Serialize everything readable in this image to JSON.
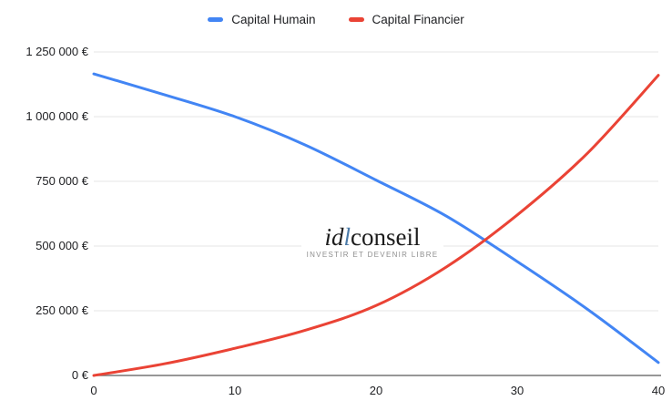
{
  "colors": {
    "background": "#ffffff",
    "gridline": "#e6e6e6",
    "axis_line": "#757575",
    "tick_label": "#202124",
    "legend_text": "#202124"
  },
  "watermark": {
    "brand_prefix": "id",
    "brand_accent": "l",
    "brand_rest": "conseil",
    "tagline": "INVESTIR ET DEVENIR LIBRE",
    "accent_color": "#4a7aa8",
    "brand_color": "#1c1c1c",
    "tagline_color": "#8f8f8f"
  },
  "chart_data": {
    "type": "line",
    "title": "",
    "xlabel": "",
    "ylabel": "",
    "x": [
      0,
      5,
      10,
      15,
      20,
      25,
      30,
      35,
      40
    ],
    "series": [
      {
        "name": "Capital Humain",
        "color": "#4285f4",
        "values": [
          1165000,
          1085000,
          1000000,
          890000,
          755000,
          615000,
          440000,
          255000,
          50000
        ]
      },
      {
        "name": "Capital Financier",
        "color": "#ea4335",
        "values": [
          0,
          45000,
          105000,
          175000,
          270000,
          420000,
          620000,
          860000,
          1160000
        ]
      }
    ],
    "xlim": [
      0,
      40
    ],
    "ylim": [
      0,
      1250000
    ],
    "x_ticks": [
      0,
      10,
      20,
      30,
      40
    ],
    "x_tick_labels": [
      "0",
      "10",
      "20",
      "30",
      "40"
    ],
    "y_ticks": [
      0,
      250000,
      500000,
      750000,
      1000000,
      1250000
    ],
    "y_tick_labels": [
      "0 €",
      "250 000 €",
      "500 000 €",
      "750 000 €",
      "1 000 000 €",
      "1 250 000 €"
    ],
    "grid": true,
    "legend_position": "top",
    "line_width": 3
  }
}
